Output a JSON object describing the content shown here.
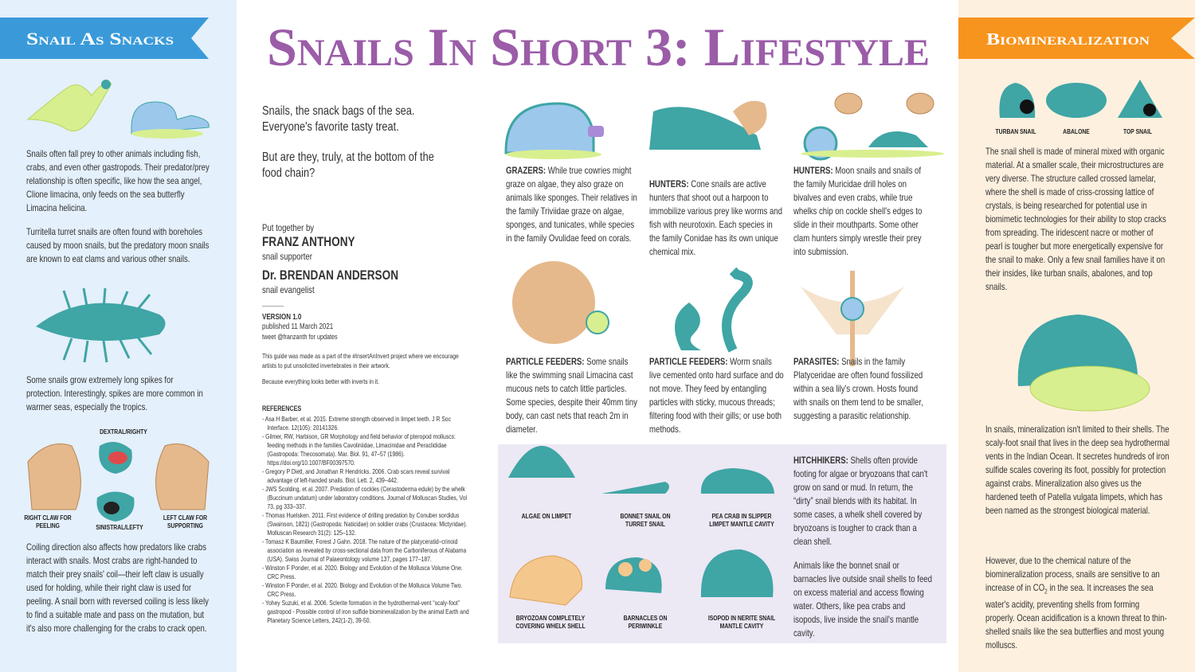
{
  "title": "Snails In Short 3: Lifestyle",
  "left": {
    "banner": "Snail As Snacks",
    "p1": "Snails often fall prey to other animals including fish, crabs, and even other gastropods. Their predator/prey relationship is often specific, like how the sea angel, Clione limacina, only feeds on the sea butterfly Limacina helicina.",
    "p2": "Turritella turret snails are often found with boreholes caused by moon snails, but the predatory moon snails are known to eat clams and various other snails.",
    "p3": "Some snails grow extremely long spikes for protection. Interestingly, spikes are more common in warmer seas, especially the tropics.",
    "labels": [
      "DEXTRAL/RIGHTY",
      "RIGHT CLAW FOR PEELING",
      "SINISTRAL/LEFTY",
      "LEFT CLAW FOR SUPPORTING"
    ],
    "p4": "Coiling direction also affects how predators like crabs interact with snails. Most crabs are right-handed to match their prey snails' coil—their left claw is usually used for holding, while their right claw is used for peeling. A snail born with reversed coiling is less likely to find a suitable mate and pass on the mutation, but it's also more challenging for the crabs to crack open."
  },
  "intro": {
    "line1": "Snails, the snack bags of the sea.",
    "line2": "Everyone's favorite tasty treat.",
    "line3": "But are they, truly, at the bottom of the food chain?"
  },
  "credits": {
    "by": "Put together by",
    "author1": "FRANZ ANTHONY",
    "role1": "snail supporter",
    "author2": "Dr. BRENDAN ANDERSON",
    "role2": "snail evangelist",
    "version": "VERSION 1.0",
    "published": "published 11 March 2021",
    "tweet": "tweet @franzanth for updates",
    "guide": "This guide was made as a part of the #InsertAnInvert project where we encourage artists to put unsolicited invertebrates in their artwork.",
    "because": "Because everything looks better with inverts in it."
  },
  "references": {
    "heading": "REFERENCES",
    "items": [
      "Asa H Barber, et al. 2015. Extreme strength observed in limpet teeth. J R Soc Interface. 12(105): 20141326.",
      "Gilmer, RW, Harbison, GR Morphology and field behavior of pteropod molluscs: feeding methods in the families Cavoliniidae, Limacinidae and Peraclididae (Gastropoda: Thecosomata). Mar. Biol. 91, 47–57 (1986). https://doi.org/10.1007/BF00397570.",
      "Gregory P Dietl, and Jonathan R Hendricks. 2006. Crab scars reveal survival advantage of left-handed snails. Biol. Lett. 2, 439–442.",
      "JWS Scolding, et al. 2007. Predation of cockles (Cerastoderma edule) by the whelk (Buccinum undatum) under laboratory conditions. Journal of Molluscan Studies, Vol 73, pg 333–337.",
      "Thomas Huelsken. 2011. First evidence of drilling predation by Conuber sordidus (Swainson, 1821) (Gastropoda: Naticidae) on soldier crabs (Crustacea: Mictyridae). Molluscan Research 31(2): 125–132.",
      "Tomasz K Baumiller, Forest J Gahn. 2018. The nature of the platyceratid–crinoid association as revealed by cross-sectional data from the Carboniferous of Alabama (USA). Swiss Journal of Palaeontology volume 137, pages 177–187.",
      "Winston F Ponder, et al. 2020. Biology and Evolution of the Mollusca Volume One. CRC Press.",
      "Winston F Ponder, et al. 2020. Biology and Evolution of the Mollusca Volume Two. CRC Press.",
      "Yohey Suzuki, et al. 2006. Sclerite formation in the hydrothermal-vent “scaly-foot” gastropod - Possible control of iron sulfide biomineralization by the animal Earth and Planetary Science Letters, 242(1-2), 39-50."
    ]
  },
  "cards": [
    {
      "heading": "GRAZERS:",
      "text": " While true cowries might graze on algae, they also graze on animals like sponges. Their relatives in the family Triviidae graze on algae, sponges, and tunicates, while species in the family Ovulidae feed on corals."
    },
    {
      "heading": "HUNTERS:",
      "text": " Cone snails are active hunters that shoot out a harpoon to immobilize various prey like worms and fish with neurotoxin. Each species in the family Conidae has its own unique chemical mix."
    },
    {
      "heading": "HUNTERS:",
      "text": " Moon snails and snails of the family Muricidae drill holes on bivalves and even crabs, while true whelks chip on cockle shell's edges to slide in their mouthparts. Some other clam hunters simply wrestle their prey into submission."
    },
    {
      "heading": "PARTICLE FEEDERS:",
      "text": " Some snails like the swimming snail Limacina cast mucous nets to catch little particles. Some species, despite their 40mm tiny body, can cast nets that reach 2m in diameter."
    },
    {
      "heading": "PARTICLE FEEDERS:",
      "text": " Worm snails live cemented onto hard surface and do not move. They feed by entangling particles with sticky, mucous threads; filtering food with their gills; or use both methods."
    },
    {
      "heading": "PARASITES:",
      "text": " Snails in the family Platyceridae are often found fossilized within a sea lily's crown. Hosts found with snails on them tend to be smaller, suggesting a parasitic relationship."
    }
  ],
  "hitchhikers": {
    "labels": [
      "ALGAE ON LIMPET",
      "BONNET SNAIL ON TURRET SNAIL",
      "PEA CRAB IN SLIPPER LIMPET MANTLE CAVITY",
      "BRYOZOAN COMPLETELY COVERING WHELK SHELL",
      "BARNACLES ON PERIWINKLE",
      "ISOPOD IN NERITE SNAIL MANTLE CAVITY"
    ],
    "heading": "HITCHHIKERS:",
    "text": " Shells often provide footing for algae or bryozoans that can't grow on sand or mud. In return, the “dirty” snail blends with its habitat. In some cases, a whelk shell covered by bryozoans is tougher to crack than a clean shell.",
    "p2": "Animals like the bonnet snail or barnacles live outside snail shells to feed on excess material and access flowing water. Others, like pea crabs and isopods, live inside the snail's mantle cavity."
  },
  "right": {
    "banner": "Biomineralization",
    "shells": [
      "TURBAN SNAIL",
      "ABALONE",
      "TOP SNAIL"
    ],
    "p1": "The snail shell is made of mineral mixed with organic material. At a smaller scale, their microstructures are very diverse. The structure called crossed lamelar, where the shell is made of criss-crossing lattice of crystals, is being researched for potential use in biomimetic technologies for their ability to stop cracks from spreading. The iridescent nacre or mother of pearl is tougher but more energetically expensive for the snail to make. Only a few snail families have it on their insides, like turban snails, abalones, and top snails.",
    "p2": "In snails, mineralization isn't limited to their shells. The scaly-foot snail that lives in the deep sea hydrothermal vents in the Indian Ocean. It secretes hundreds of iron sulfide scales covering its foot, possibly for protection against crabs. Mineralization also gives us the hardened teeth of Patella vulgata limpets, which has been named as the strongest biological material.",
    "p3": [
      "However, due to the chemical nature of the biomineralization process, snails are sensitive to an increase of in CO",
      "2",
      " in the sea. It increases the sea water's acidity, preventing shells from forming properly. Ocean acidification is a known threat to thin-shelled snails like the sea butterflies and most young molluscs."
    ]
  }
}
